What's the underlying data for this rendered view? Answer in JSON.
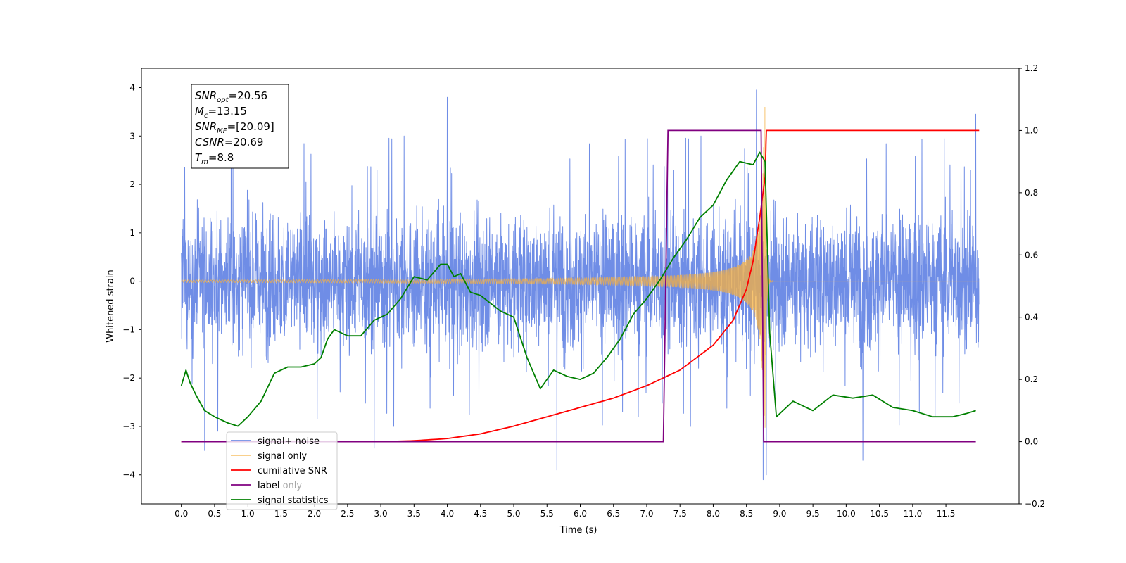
{
  "chart_data": {
    "type": "line",
    "xlabel": "Time (s)",
    "ylabel": "Whitened strain",
    "xlim": [
      -0.6,
      12.6
    ],
    "ylim": [
      -4.6,
      4.4
    ],
    "y2lim": [
      -0.2,
      1.2
    ],
    "x_ticks": [
      "0.0",
      "0.5",
      "1.0",
      "1.5",
      "2.0",
      "2.5",
      "3.0",
      "3.5",
      "4.0",
      "4.5",
      "5.0",
      "5.5",
      "6.0",
      "6.5",
      "7.0",
      "7.5",
      "8.0",
      "8.5",
      "9.0",
      "9.5",
      "10.0",
      "10.5",
      "11.0",
      "11.5"
    ],
    "y_ticks": [
      "4",
      "3",
      "2",
      "1",
      "0",
      "−1",
      "−2",
      "−3",
      "−4"
    ],
    "y2_ticks": [
      "1.2",
      "1.0",
      "0.8",
      "0.6",
      "0.4",
      "0.2",
      "0.0",
      "−0.2"
    ],
    "annotation": {
      "lines": [
        {
          "var": "SNR",
          "sub": "opt",
          "value": "=20.56"
        },
        {
          "var": "M",
          "sub": "c",
          "value": "=13.15"
        },
        {
          "var": "SNR",
          "sub": "MF",
          "value": "=[20.09]"
        },
        {
          "var": "CSNR",
          "sub": "",
          "value": "=20.69"
        },
        {
          "var": "T",
          "sub": "m",
          "value": "=8.8"
        }
      ]
    },
    "legend": {
      "placement": "lower-left",
      "entries": [
        {
          "key": "noise",
          "label": "signal+ noise"
        },
        {
          "key": "signal",
          "label": "signal only"
        },
        {
          "key": "csnr",
          "label": "cumilative SNR"
        },
        {
          "key": "label",
          "label": "label"
        },
        {
          "key": "stats",
          "label": "signal statistics"
        },
        {
          "key": "label_only",
          "label": "label only"
        }
      ]
    },
    "colors": {
      "noise": "#6f8de6",
      "signal": "#f5b040",
      "csnr": "#ff0000",
      "label": "#800080",
      "stats": "#008000",
      "label_only": "#800080"
    },
    "series": [
      {
        "key": "noise",
        "name": "signal+ noise",
        "axis": "left",
        "x_range": [
          0.0,
          12.0
        ],
        "amplitude_typical": 2.3,
        "amplitude_peak": 4.0,
        "peaks": [
          [
            0.05,
            2.35
          ],
          [
            0.35,
            -3.5
          ],
          [
            0.55,
            -3.1
          ],
          [
            2.9,
            -3.45
          ],
          [
            4.0,
            3.8
          ],
          [
            5.65,
            -3.9
          ],
          [
            8.65,
            3.95
          ],
          [
            8.75,
            -4.1
          ],
          [
            8.8,
            -4.0
          ],
          [
            10.25,
            -3.7
          ],
          [
            11.95,
            3.45
          ]
        ]
      },
      {
        "key": "signal",
        "name": "signal only",
        "axis": "left",
        "merger_time": 8.78,
        "peak_amplitude": 3.65
      },
      {
        "key": "csnr",
        "name": "cumilative SNR",
        "axis": "right",
        "x": [
          0.0,
          3.0,
          3.5,
          4.0,
          4.5,
          5.0,
          5.5,
          6.0,
          6.5,
          7.0,
          7.5,
          8.0,
          8.3,
          8.5,
          8.6,
          8.7,
          8.78,
          8.8,
          12.0
        ],
        "y": [
          0.0,
          0.0,
          0.003,
          0.01,
          0.025,
          0.05,
          0.08,
          0.11,
          0.14,
          0.18,
          0.23,
          0.31,
          0.39,
          0.49,
          0.58,
          0.72,
          0.85,
          1.0,
          1.0
        ]
      },
      {
        "key": "label",
        "name": "label",
        "axis": "right",
        "x": [
          0.0,
          7.25,
          7.32,
          8.72,
          8.76,
          11.95
        ],
        "y": [
          0.0,
          0.0,
          1.0,
          1.0,
          0.0,
          0.0
        ]
      },
      {
        "key": "stats",
        "name": "signal statistics",
        "axis": "right",
        "x": [
          0.0,
          0.07,
          0.13,
          0.22,
          0.35,
          0.5,
          0.7,
          0.85,
          1.0,
          1.2,
          1.4,
          1.6,
          1.8,
          2.0,
          2.1,
          2.2,
          2.3,
          2.5,
          2.7,
          2.9,
          3.1,
          3.3,
          3.5,
          3.7,
          3.9,
          4.0,
          4.1,
          4.2,
          4.35,
          4.5,
          4.8,
          5.0,
          5.2,
          5.4,
          5.6,
          5.8,
          6.0,
          6.2,
          6.4,
          6.6,
          6.8,
          7.0,
          7.2,
          7.4,
          7.6,
          7.8,
          8.0,
          8.2,
          8.4,
          8.6,
          8.7,
          8.78,
          8.85,
          8.95,
          9.2,
          9.5,
          9.8,
          10.1,
          10.4,
          10.7,
          11.0,
          11.3,
          11.6,
          11.8,
          11.95
        ],
        "y": [
          0.18,
          0.23,
          0.19,
          0.15,
          0.1,
          0.08,
          0.06,
          0.05,
          0.08,
          0.13,
          0.22,
          0.24,
          0.24,
          0.25,
          0.27,
          0.33,
          0.36,
          0.34,
          0.34,
          0.39,
          0.41,
          0.46,
          0.53,
          0.52,
          0.57,
          0.57,
          0.53,
          0.54,
          0.48,
          0.47,
          0.42,
          0.4,
          0.27,
          0.17,
          0.23,
          0.21,
          0.2,
          0.22,
          0.27,
          0.33,
          0.41,
          0.46,
          0.52,
          0.59,
          0.65,
          0.72,
          0.76,
          0.84,
          0.9,
          0.89,
          0.93,
          0.9,
          0.35,
          0.08,
          0.13,
          0.1,
          0.15,
          0.14,
          0.15,
          0.11,
          0.1,
          0.08,
          0.08,
          0.09,
          0.1
        ]
      }
    ]
  }
}
